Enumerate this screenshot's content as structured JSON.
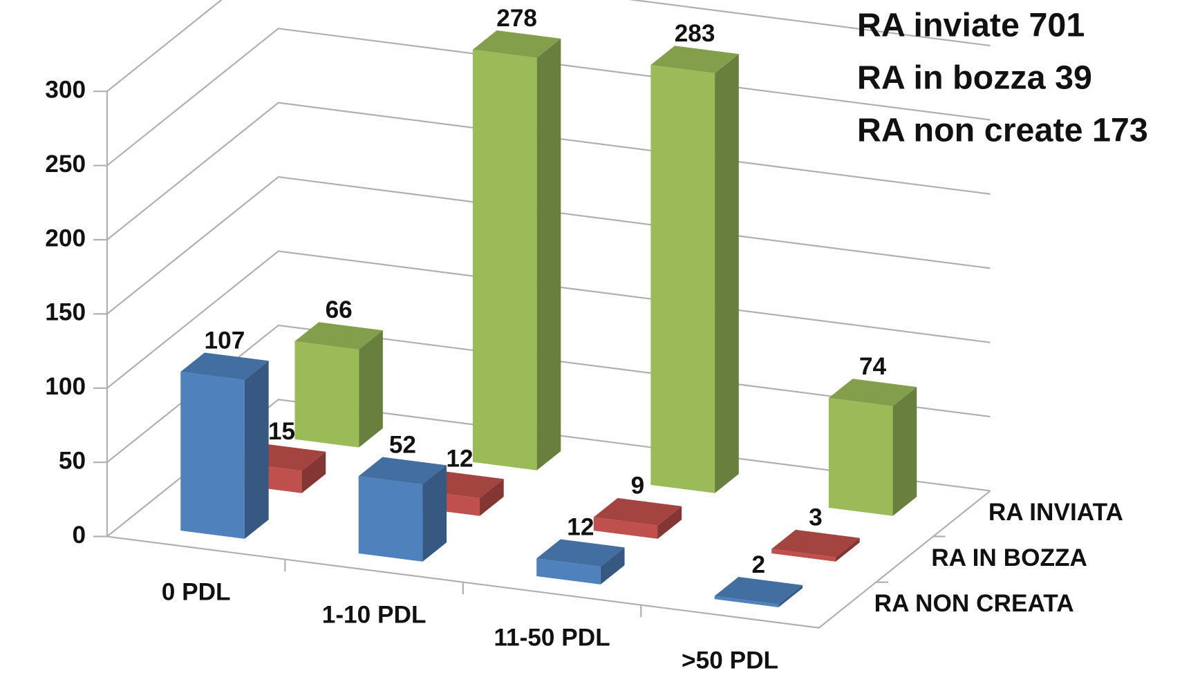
{
  "chart_data": {
    "type": "bar3d",
    "categories": [
      "0 PDL",
      "1-10 PDL",
      "11-50 PDL",
      ">50 PDL"
    ],
    "series": [
      {
        "name": "RA NON CREATA",
        "color": "#4f81bd",
        "values": [
          107,
          52,
          12,
          2
        ]
      },
      {
        "name": "RA IN BOZZA",
        "color": "#c0504d",
        "values": [
          15,
          12,
          9,
          3
        ]
      },
      {
        "name": "RA INVIATA",
        "color": "#9bbb59",
        "values": [
          66,
          278,
          283,
          74
        ]
      }
    ],
    "ylim": [
      0,
      300
    ],
    "yticks": [
      0,
      50,
      100,
      150,
      200,
      250,
      300
    ],
    "grid": true,
    "annotations": [
      "RA inviate 701",
      "RA in bozza 39",
      "RA non create 173"
    ]
  }
}
